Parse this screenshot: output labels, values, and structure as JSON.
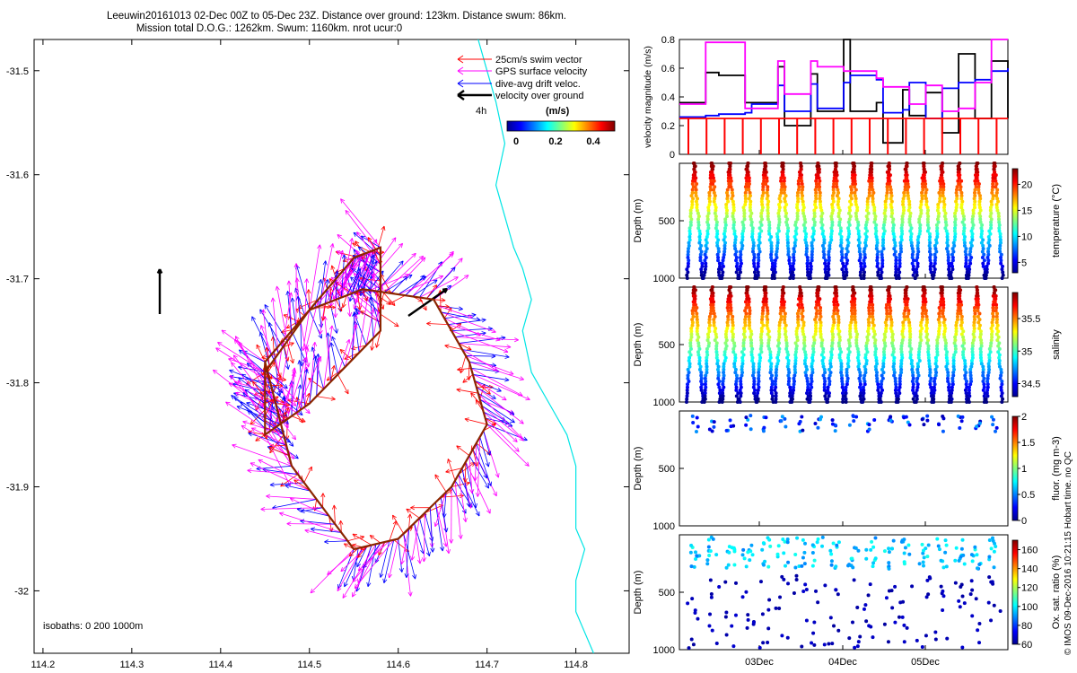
{
  "header": {
    "line1": "Leeuwin20161013 02-Dec 00Z to 05-Dec 23Z. Distance over ground: 123km. Distance swum: 86km.",
    "line2": "Mission total D.O.G.: 1262km. Swum: 1160km. nrot ucur:0"
  },
  "legend": {
    "items": [
      {
        "label": "25cm/s swim vector",
        "color": "#ff0000"
      },
      {
        "label": "GPS surface velocity",
        "color": "#ff00ff"
      },
      {
        "label": "dive-avg drift veloc.",
        "color": "#0000ff"
      },
      {
        "label": "velocity over ground",
        "color": "#000000"
      }
    ],
    "time_label": "4h",
    "colorbar_unit": "(m/s)",
    "colorbar_ticks": [
      "0",
      "0.2",
      "0.4"
    ]
  },
  "isobaths_label": "isobaths: 0   200  1000m",
  "watermark": "© IMOS 09-Dec-2016 10:21:15 Hobart time. no QC",
  "colors": {
    "swim": "#ff0000",
    "gps": "#ff00ff",
    "drift": "#0000ff",
    "ground": "#000000",
    "coast": "#00e5e5"
  },
  "chart_data": [
    {
      "type": "scatter",
      "title": "Leeuwin20161013 02-Dec 00Z to 05-Dec 23Z. Distance over ground: 123km. Distance swum: 86km.",
      "xlim": [
        114.19,
        114.86
      ],
      "ylim": [
        -32.06,
        -31.47
      ],
      "x_ticks": [
        "114.2",
        "114.3",
        "114.4",
        "114.5",
        "114.6",
        "114.7",
        "114.8"
      ],
      "y_ticks": [
        "-31.5",
        "-31.6",
        "-31.7",
        "-31.8",
        "-31.9",
        "-32"
      ],
      "track_lon": [
        114.45,
        114.55,
        114.58,
        114.58,
        114.5,
        114.45,
        114.45,
        114.48,
        114.55,
        114.6,
        114.66,
        114.7,
        114.68,
        114.64,
        114.56,
        114.5,
        114.45,
        114.45
      ],
      "track_lat": [
        -31.78,
        -31.68,
        -31.67,
        -31.75,
        -31.82,
        -31.85,
        -31.78,
        -31.88,
        -31.96,
        -31.95,
        -31.9,
        -31.84,
        -31.78,
        -31.72,
        -31.71,
        -31.73,
        -31.79,
        -31.85
      ],
      "coast_lon": [
        114.69,
        114.7,
        114.71,
        114.72,
        114.71,
        114.72,
        114.73,
        114.74,
        114.75,
        114.74,
        114.75,
        114.77,
        114.79,
        114.8,
        114.8,
        114.8,
        114.81,
        114.8,
        114.8,
        114.81,
        114.82
      ],
      "coast_lat": [
        -31.47,
        -31.5,
        -31.53,
        -31.57,
        -31.61,
        -31.64,
        -31.67,
        -31.69,
        -31.72,
        -31.75,
        -31.79,
        -31.82,
        -31.85,
        -31.88,
        -31.91,
        -31.94,
        -31.96,
        -31.99,
        -32.02,
        -32.04,
        -32.06
      ]
    },
    {
      "type": "line",
      "ylabel": "velocity magnitude (m/s)",
      "ylim": [
        0,
        0.8
      ],
      "y_ticks": [
        "0",
        "0.2",
        "0.4",
        "0.6",
        "0.8"
      ],
      "x": [
        0,
        0.08,
        0.12,
        0.2,
        0.22,
        0.3,
        0.32,
        0.4,
        0.42,
        0.5,
        0.52,
        0.6,
        0.62,
        0.68,
        0.7,
        0.75,
        0.8,
        0.85,
        0.9,
        0.95,
        1
      ],
      "series": [
        {
          "name": "velocity over ground",
          "color": "#000000",
          "values": [
            0.36,
            0.57,
            0.55,
            0.36,
            0.36,
            0.61,
            0.2,
            0.56,
            0.3,
            0.8,
            0.3,
            0.36,
            0.08,
            0.45,
            0.27,
            0.43,
            0.15,
            0.7,
            0.25,
            0.65,
            0.25
          ]
        },
        {
          "name": "dive-avg drift veloc.",
          "color": "#0000ff",
          "values": [
            0.26,
            0.27,
            0.28,
            0.29,
            0.35,
            0.48,
            0.3,
            0.49,
            0.32,
            0.5,
            0.55,
            0.52,
            0.29,
            0.31,
            0.5,
            0.25,
            0.46,
            0.5,
            0.52,
            0.58,
            0.6
          ]
        },
        {
          "name": "GPS surface velocity",
          "color": "#ff00ff",
          "values": [
            0.35,
            0.78,
            0.78,
            0.32,
            0.32,
            0.65,
            0.42,
            0.65,
            0.61,
            0.58,
            0.58,
            0.53,
            0.47,
            0.47,
            0.35,
            0.48,
            0.3,
            0.32,
            0.5,
            0.8,
            0.8
          ]
        },
        {
          "name": "25cm/s swim vector",
          "color": "#ff0000",
          "values": [
            0.25,
            0.25,
            0.25,
            0.25,
            0.25,
            0.25,
            0.25,
            0.25,
            0.25,
            0.25,
            0.25,
            0.25,
            0.25,
            0.25,
            0.25,
            0.25,
            0.25,
            0.25,
            0.25,
            0.25,
            0.25
          ]
        }
      ]
    },
    {
      "type": "scatter",
      "ylabel": "Depth (m)",
      "ylim": [
        1000,
        0
      ],
      "y_ticks": [
        "500",
        "1000"
      ],
      "colorbar_label": "temperature (°C)",
      "colorbar_ticks": [
        "5",
        "10",
        "15",
        "20"
      ],
      "colorbar_range": [
        3,
        23
      ],
      "dives": 18,
      "max_depth": 1000
    },
    {
      "type": "scatter",
      "ylabel": "Depth (m)",
      "ylim": [
        1000,
        0
      ],
      "y_ticks": [
        "500",
        "1000"
      ],
      "colorbar_label": "salinity",
      "colorbar_ticks": [
        "34.5",
        "35",
        "35.5"
      ],
      "colorbar_range": [
        34.3,
        35.9
      ],
      "dives": 18,
      "max_depth": 1000
    },
    {
      "type": "scatter",
      "ylabel": "Depth (m)",
      "ylim": [
        1000,
        0
      ],
      "y_ticks": [
        "500",
        "1000"
      ],
      "colorbar_label": "fluor. (mg m-3)",
      "colorbar_ticks": [
        "0",
        "0.5",
        "1",
        "1.5",
        "2"
      ],
      "colorbar_range": [
        0,
        2
      ],
      "dives": 18,
      "max_depth": 180
    },
    {
      "type": "scatter",
      "ylabel": "Depth (m)",
      "ylim": [
        1000,
        0
      ],
      "y_ticks": [
        "500",
        "1000"
      ],
      "x_ticks": [
        "03Dec",
        "04Dec",
        "05Dec"
      ],
      "colorbar_label": "Ox. sat. ratio (%)",
      "colorbar_ticks": [
        "60",
        "80",
        "100",
        "120",
        "140",
        "160"
      ],
      "colorbar_range": [
        60,
        170
      ],
      "dives": 18,
      "max_depth": 1000
    }
  ]
}
